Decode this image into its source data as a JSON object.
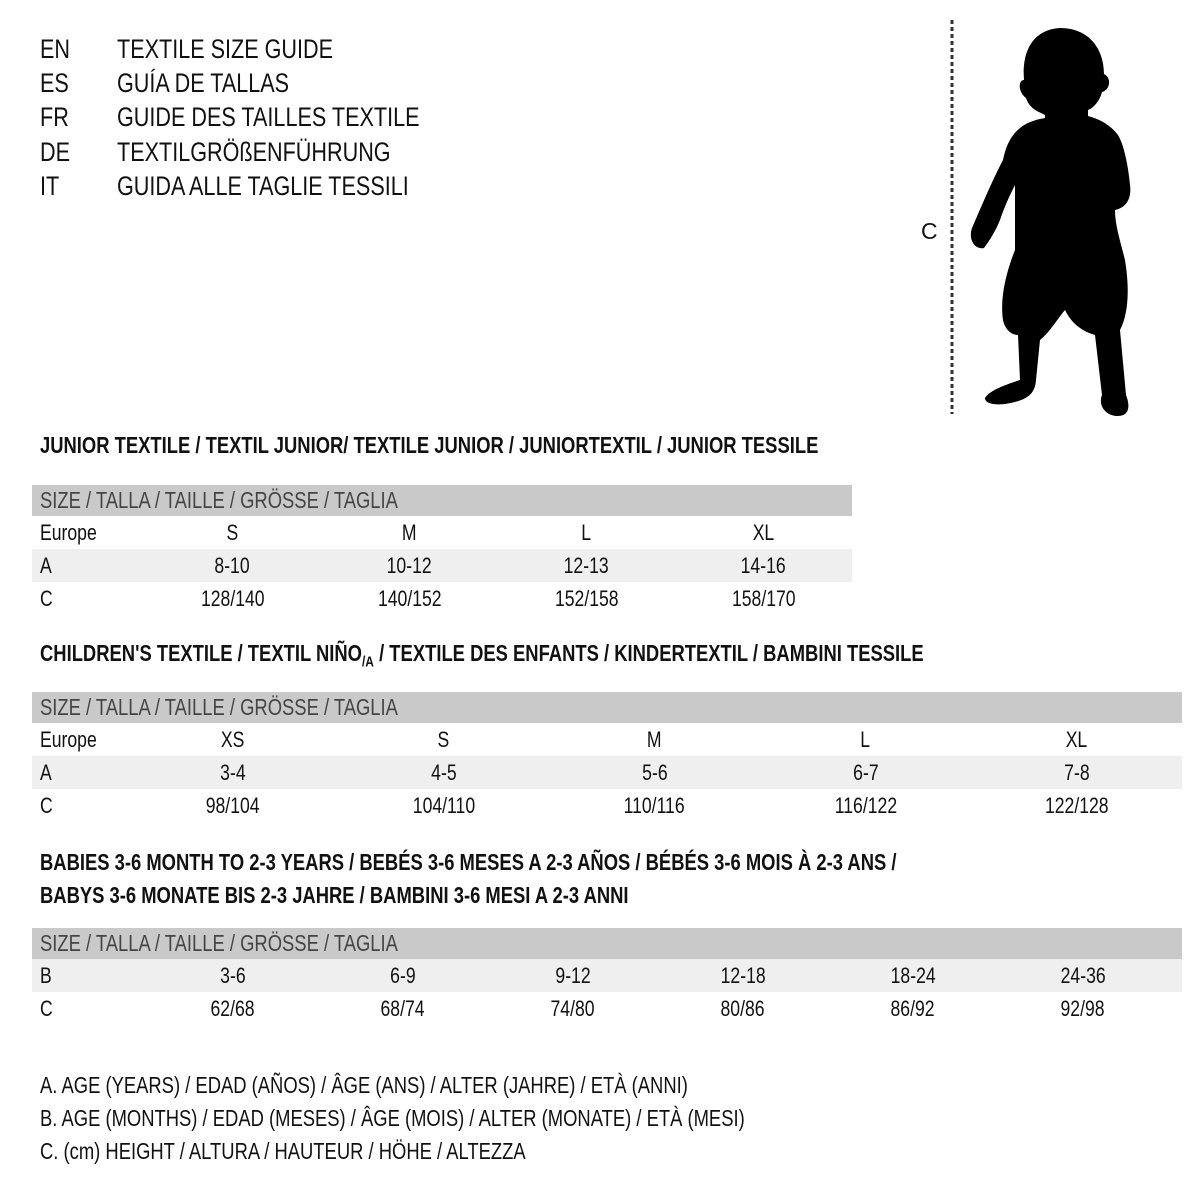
{
  "titles": [
    {
      "code": "EN",
      "text": "TEXTILE SIZE GUIDE"
    },
    {
      "code": "ES",
      "text": "GUÍA DE TALLAS"
    },
    {
      "code": "FR",
      "text": "GUIDE DES TAILLES TEXTILE"
    },
    {
      "code": "DE",
      "text": "TEXTILGRÖßENFÜHRUNG"
    },
    {
      "code": "IT",
      "text": "GUIDA ALLE TAGLIE TESSILI"
    }
  ],
  "figure": {
    "measure_label": "C",
    "icon": "child-silhouette-icon"
  },
  "junior": {
    "heading": "JUNIOR TEXTILE / TEXTIL JUNIOR/ TEXTILE JUNIOR / JUNIORTEXTIL / JUNIOR TESSILE",
    "header": "SIZE / TALLA / TAILLE / GRÖSSE / TAGLIA",
    "rows": [
      {
        "label": "Europe",
        "values": [
          "S",
          "M",
          "L",
          "XL"
        ]
      },
      {
        "label": "A",
        "values": [
          "8-10",
          "10-12",
          "12-13",
          "14-16"
        ]
      },
      {
        "label": "C",
        "values": [
          "128/140",
          "140/152",
          "152/158",
          "158/170"
        ]
      }
    ]
  },
  "children": {
    "heading_main": "CHILDREN'S TEXTILE / TEXTIL NIÑO",
    "heading_sub": "/A",
    "heading_rest": " / TEXTILE DES ENFANTS / KINDERTEXTIL / BAMBINI TESSILE",
    "header": "SIZE / TALLA / TAILLE / GRÖSSE / TAGLIA",
    "rows": [
      {
        "label": "Europe",
        "values": [
          "XS",
          "S",
          "M",
          "L",
          "XL"
        ]
      },
      {
        "label": "A",
        "values": [
          "3-4",
          "4-5",
          "5-6",
          "6-7",
          "7-8"
        ]
      },
      {
        "label": "C",
        "values": [
          "98/104",
          "104/110",
          "110/116",
          "116/122",
          "122/128"
        ]
      }
    ]
  },
  "babies": {
    "heading_line1": "BABIES 3-6 MONTH TO 2-3 YEARS / BEBÉS 3-6 MESES A 2-3 AÑOS / BÉBÉS 3-6 MOIS À 2-3 ANS /",
    "heading_line2": "BABYS 3-6 MONATE BIS 2-3 JAHRE / BAMBINI 3-6 MESI A 2-3 ANNI",
    "header": "SIZE / TALLA / TAILLE / GRÖSSE / TAGLIA",
    "rows": [
      {
        "label": "B",
        "values": [
          "3-6",
          "6-9",
          "9-12",
          "12-18",
          "18-24",
          "24-36"
        ]
      },
      {
        "label": "C",
        "values": [
          "62/68",
          "68/74",
          "74/80",
          "80/86",
          "86/92",
          "92/98"
        ]
      }
    ]
  },
  "legend": [
    "A. AGE (YEARS) / EDAD (AÑOS) / ÂGE (ANS) / ALTER (JAHRE) / ETÀ (ANNI)",
    "B. AGE (MONTHS) / EDAD (MESES) / ÂGE (MOIS) / ALTER (MONATE) / ETÀ (MESI)",
    "C. (cm) HEIGHT / ALTURA / HAUTEUR / HÖHE / ALTEZZA"
  ],
  "colors": {
    "header_band": "#c9c9c9",
    "alt_row": "#efefef"
  }
}
